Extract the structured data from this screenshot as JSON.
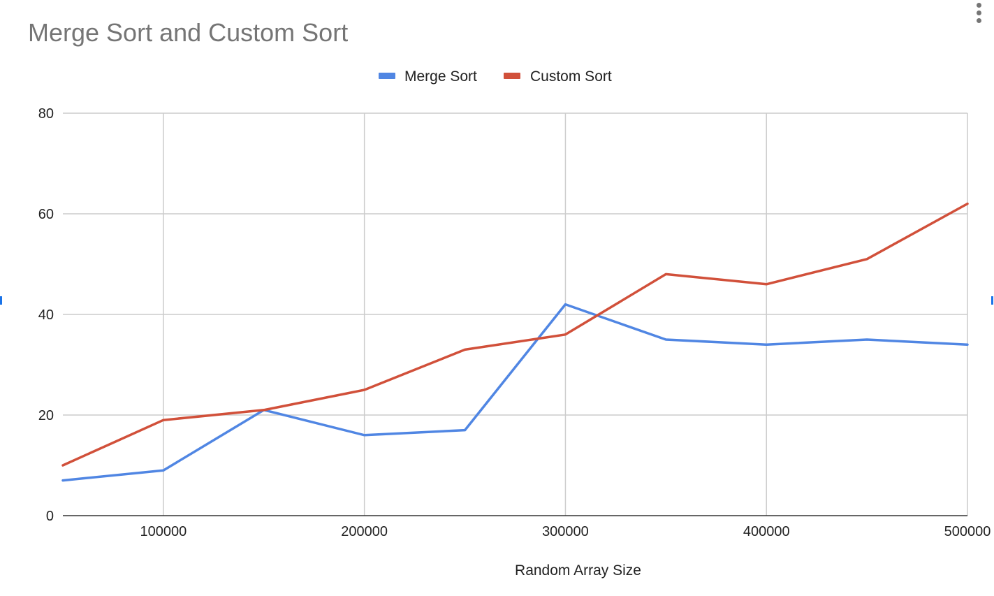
{
  "chart_data": {
    "type": "line",
    "title": "Merge Sort and Custom Sort",
    "xlabel": "Random Array Size",
    "ylabel": "",
    "x": [
      50000,
      100000,
      150000,
      200000,
      250000,
      300000,
      350000,
      400000,
      450000,
      500000
    ],
    "xlim": [
      50000,
      500000
    ],
    "xticks": [
      100000,
      200000,
      300000,
      400000,
      500000
    ],
    "xtick_labels": [
      "100000",
      "200000",
      "300000",
      "400000",
      "500000"
    ],
    "ylim": [
      0,
      80
    ],
    "yticks": [
      0,
      20,
      40,
      60,
      80
    ],
    "ytick_labels": [
      "0",
      "20",
      "40",
      "60",
      "80"
    ],
    "grid": true,
    "legend_position": "top-center",
    "series": [
      {
        "name": "Merge Sort",
        "color": "#5086e3",
        "values": [
          7,
          9,
          21,
          16,
          17,
          42,
          35,
          34,
          35,
          34
        ]
      },
      {
        "name": "Custom Sort",
        "color": "#d1503a",
        "values": [
          10,
          19,
          21,
          25,
          33,
          36,
          48,
          46,
          51,
          62
        ]
      }
    ]
  },
  "ui": {
    "menu_icon": "more-vert-icon"
  }
}
